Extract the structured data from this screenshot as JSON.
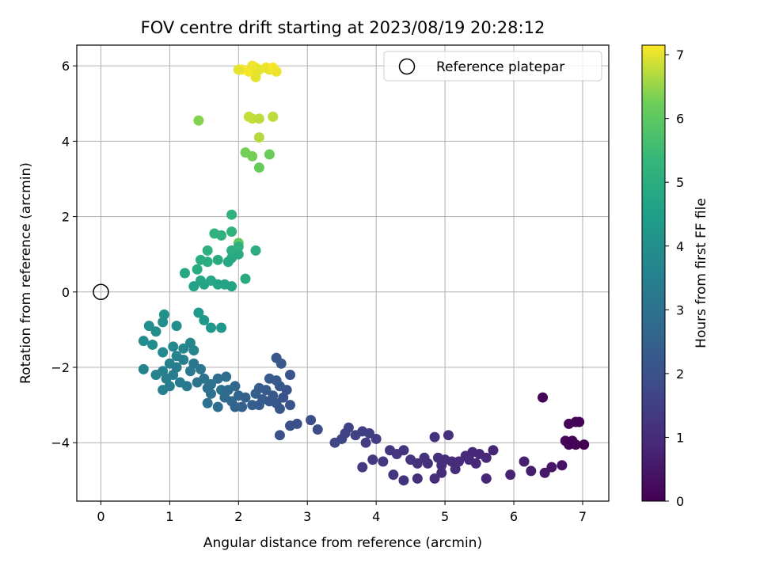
{
  "chart_data": {
    "type": "scatter",
    "title": "FOV centre drift starting at 2023/08/19 20:28:12",
    "xlabel": "Angular distance from reference (arcmin)",
    "ylabel": "Rotation from reference (arcmin)",
    "xlim": [
      -0.35,
      7.38
    ],
    "ylim": [
      -5.55,
      6.55
    ],
    "xticks": [
      0,
      1,
      2,
      3,
      4,
      5,
      6,
      7
    ],
    "yticks": [
      -4,
      -2,
      0,
      2,
      4,
      6
    ],
    "grid": true,
    "legend": {
      "position": "top-right",
      "entries": [
        "Reference platepar"
      ]
    },
    "reference_point": {
      "x": 0,
      "y": 0
    },
    "colorbar": {
      "label": "Hours from first FF file",
      "range": [
        0,
        7.15
      ],
      "ticks": [
        0,
        1,
        2,
        3,
        4,
        5,
        6,
        7
      ],
      "colormap": "viridis"
    },
    "points": [
      [
        2.05,
        5.9,
        7.1
      ],
      [
        2.15,
        5.85,
        7.1
      ],
      [
        2.25,
        5.95,
        7.05
      ],
      [
        2.3,
        5.9,
        7.0
      ],
      [
        2.4,
        5.95,
        7.05
      ],
      [
        2.45,
        5.9,
        7.0
      ],
      [
        2.5,
        5.95,
        7.1
      ],
      [
        2.55,
        5.85,
        7.05
      ],
      [
        2.25,
        5.7,
        7.0
      ],
      [
        2.0,
        5.9,
        7.0
      ],
      [
        2.2,
        6.0,
        7.05
      ],
      [
        2.15,
        4.65,
        6.8
      ],
      [
        2.2,
        4.6,
        6.8
      ],
      [
        2.3,
        4.6,
        6.75
      ],
      [
        2.5,
        4.65,
        6.75
      ],
      [
        1.42,
        4.55,
        6.4
      ],
      [
        2.3,
        4.1,
        6.7
      ],
      [
        2.1,
        3.7,
        6.3
      ],
      [
        2.2,
        3.6,
        6.3
      ],
      [
        2.45,
        3.65,
        6.2
      ],
      [
        2.3,
        3.3,
        6.15
      ],
      [
        2.0,
        1.3,
        6.0
      ],
      [
        1.9,
        2.05,
        5.2
      ],
      [
        1.65,
        1.55,
        5.2
      ],
      [
        1.75,
        1.5,
        5.1
      ],
      [
        1.9,
        1.6,
        5.2
      ],
      [
        1.9,
        1.1,
        5.0
      ],
      [
        2.0,
        1.2,
        5.1
      ],
      [
        1.55,
        1.1,
        5.1
      ],
      [
        2.25,
        1.1,
        5.0
      ],
      [
        1.45,
        0.85,
        5.0
      ],
      [
        1.55,
        0.8,
        5.0
      ],
      [
        1.7,
        0.85,
        4.9
      ],
      [
        1.9,
        0.9,
        4.9
      ],
      [
        2.0,
        1.0,
        4.9
      ],
      [
        1.85,
        0.8,
        4.8
      ],
      [
        1.4,
        0.6,
        4.9
      ],
      [
        1.22,
        0.5,
        4.8
      ],
      [
        1.45,
        0.3,
        4.8
      ],
      [
        1.6,
        0.3,
        4.8
      ],
      [
        1.7,
        0.2,
        4.7
      ],
      [
        1.8,
        0.2,
        4.7
      ],
      [
        1.9,
        0.15,
        4.7
      ],
      [
        1.35,
        0.15,
        4.6
      ],
      [
        1.5,
        0.2,
        4.7
      ],
      [
        2.1,
        0.35,
        4.9
      ],
      [
        1.42,
        -0.55,
        4.3
      ],
      [
        1.5,
        -0.75,
        4.3
      ],
      [
        1.6,
        -0.95,
        4.2
      ],
      [
        1.75,
        -0.95,
        4.2
      ],
      [
        0.92,
        -0.6,
        4.05
      ],
      [
        0.9,
        -0.8,
        4.0
      ],
      [
        0.7,
        -0.9,
        4.0
      ],
      [
        1.1,
        -0.9,
        4.0
      ],
      [
        0.62,
        -1.3,
        3.9
      ],
      [
        0.75,
        -1.4,
        3.9
      ],
      [
        0.8,
        -1.05,
        3.9
      ],
      [
        0.9,
        -1.6,
        3.8
      ],
      [
        1.05,
        -1.45,
        3.8
      ],
      [
        1.2,
        -1.5,
        3.7
      ],
      [
        1.3,
        -1.35,
        3.7
      ],
      [
        1.35,
        -1.55,
        3.65
      ],
      [
        1.1,
        -1.7,
        3.6
      ],
      [
        1.2,
        -1.8,
        3.5
      ],
      [
        1.0,
        -1.9,
        3.5
      ],
      [
        0.62,
        -2.05,
        3.6
      ],
      [
        0.8,
        -2.2,
        3.6
      ],
      [
        0.9,
        -2.1,
        3.5
      ],
      [
        0.95,
        -2.3,
        3.4
      ],
      [
        1.05,
        -2.2,
        3.4
      ],
      [
        1.1,
        -2.0,
        3.35
      ],
      [
        1.15,
        -2.4,
        3.3
      ],
      [
        1.25,
        -2.5,
        3.3
      ],
      [
        1.3,
        -2.1,
        3.25
      ],
      [
        1.35,
        -1.9,
        3.2
      ],
      [
        1.45,
        -2.05,
        3.2
      ],
      [
        1.5,
        -2.3,
        3.1
      ],
      [
        1.4,
        -2.4,
        3.1
      ],
      [
        1.55,
        -2.55,
        3.0
      ],
      [
        1.6,
        -2.7,
        3.0
      ],
      [
        0.9,
        -2.6,
        3.5
      ],
      [
        1.0,
        -2.5,
        3.4
      ],
      [
        1.55,
        -2.95,
        3.0
      ],
      [
        1.7,
        -2.3,
        2.9
      ],
      [
        1.75,
        -2.6,
        2.9
      ],
      [
        1.8,
        -2.8,
        2.8
      ],
      [
        1.85,
        -2.6,
        2.75
      ],
      [
        1.9,
        -2.9,
        2.7
      ],
      [
        1.95,
        -2.5,
        2.7
      ],
      [
        2.0,
        -2.75,
        2.6
      ],
      [
        2.05,
        -3.05,
        2.5
      ],
      [
        2.1,
        -2.8,
        2.5
      ],
      [
        2.2,
        -3.0,
        2.4
      ],
      [
        2.25,
        -2.7,
        2.4
      ],
      [
        2.3,
        -2.55,
        2.35
      ],
      [
        2.35,
        -2.85,
        2.3
      ],
      [
        2.4,
        -2.6,
        2.3
      ],
      [
        2.45,
        -2.9,
        2.25
      ],
      [
        2.5,
        -2.75,
        2.2
      ],
      [
        2.55,
        -2.95,
        2.2
      ],
      [
        2.6,
        -2.5,
        2.15
      ],
      [
        2.65,
        -2.8,
        2.1
      ],
      [
        2.7,
        -2.6,
        2.1
      ],
      [
        2.75,
        -3.0,
        2.05
      ],
      [
        2.45,
        -2.3,
        2.3
      ],
      [
        2.55,
        -2.35,
        2.25
      ],
      [
        2.75,
        -2.2,
        2.1
      ],
      [
        2.55,
        -1.75,
        2.2
      ],
      [
        2.62,
        -1.9,
        2.2
      ],
      [
        1.82,
        -2.25,
        2.9
      ],
      [
        1.6,
        -2.45,
        3.0
      ],
      [
        1.95,
        -3.05,
        2.6
      ],
      [
        2.3,
        -3.0,
        2.3
      ],
      [
        2.6,
        -3.1,
        2.15
      ],
      [
        2.6,
        -3.8,
        2.0
      ],
      [
        2.75,
        -3.55,
        2.0
      ],
      [
        2.85,
        -3.5,
        1.95
      ],
      [
        3.05,
        -3.4,
        1.9
      ],
      [
        3.15,
        -3.65,
        1.85
      ],
      [
        1.7,
        -3.05,
        2.9
      ],
      [
        3.4,
        -4.0,
        1.7
      ],
      [
        3.5,
        -3.9,
        1.65
      ],
      [
        3.55,
        -3.75,
        1.6
      ],
      [
        3.6,
        -3.6,
        1.6
      ],
      [
        3.7,
        -3.8,
        1.55
      ],
      [
        3.8,
        -3.7,
        1.5
      ],
      [
        3.9,
        -3.75,
        1.5
      ],
      [
        4.0,
        -3.9,
        1.45
      ],
      [
        3.85,
        -4.0,
        1.4
      ],
      [
        3.8,
        -4.65,
        1.35
      ],
      [
        3.95,
        -4.45,
        1.35
      ],
      [
        4.1,
        -4.5,
        1.3
      ],
      [
        4.2,
        -4.2,
        1.3
      ],
      [
        4.3,
        -4.3,
        1.25
      ],
      [
        4.4,
        -4.2,
        1.2
      ],
      [
        4.5,
        -4.45,
        1.2
      ],
      [
        4.6,
        -4.55,
        1.15
      ],
      [
        4.7,
        -4.4,
        1.15
      ],
      [
        4.75,
        -4.55,
        1.1
      ],
      [
        4.85,
        -3.85,
        1.15
      ],
      [
        4.9,
        -4.4,
        1.1
      ],
      [
        4.95,
        -4.6,
        1.05
      ],
      [
        5.0,
        -4.45,
        1.05
      ],
      [
        5.05,
        -3.8,
        1.1
      ],
      [
        5.1,
        -4.5,
        1.0
      ],
      [
        5.2,
        -4.5,
        1.0
      ],
      [
        5.3,
        -4.35,
        0.95
      ],
      [
        5.35,
        -4.45,
        0.95
      ],
      [
        5.4,
        -4.25,
        0.9
      ],
      [
        5.5,
        -4.3,
        0.9
      ],
      [
        5.6,
        -4.4,
        0.9
      ],
      [
        5.7,
        -4.2,
        0.85
      ],
      [
        5.6,
        -4.95,
        0.85
      ],
      [
        4.25,
        -4.85,
        1.2
      ],
      [
        4.4,
        -5.0,
        1.15
      ],
      [
        4.6,
        -4.95,
        1.1
      ],
      [
        4.85,
        -4.95,
        1.05
      ],
      [
        4.95,
        -4.8,
        1.0
      ],
      [
        5.15,
        -4.7,
        1.0
      ],
      [
        5.45,
        -4.55,
        0.95
      ],
      [
        5.95,
        -4.85,
        0.8
      ],
      [
        6.15,
        -4.5,
        0.7
      ],
      [
        6.25,
        -4.75,
        0.65
      ],
      [
        6.42,
        -2.8,
        0.1
      ],
      [
        6.45,
        -4.8,
        0.55
      ],
      [
        6.55,
        -4.65,
        0.5
      ],
      [
        6.7,
        -4.6,
        0.4
      ],
      [
        6.75,
        -3.95,
        0.15
      ],
      [
        6.8,
        -4.05,
        0.1
      ],
      [
        6.85,
        -3.95,
        0.1
      ],
      [
        6.8,
        -3.5,
        0.1
      ],
      [
        6.9,
        -3.45,
        0.05
      ],
      [
        6.95,
        -3.45,
        0.05
      ],
      [
        6.9,
        -4.05,
        0.05
      ],
      [
        7.02,
        -4.05,
        0.0
      ]
    ]
  }
}
